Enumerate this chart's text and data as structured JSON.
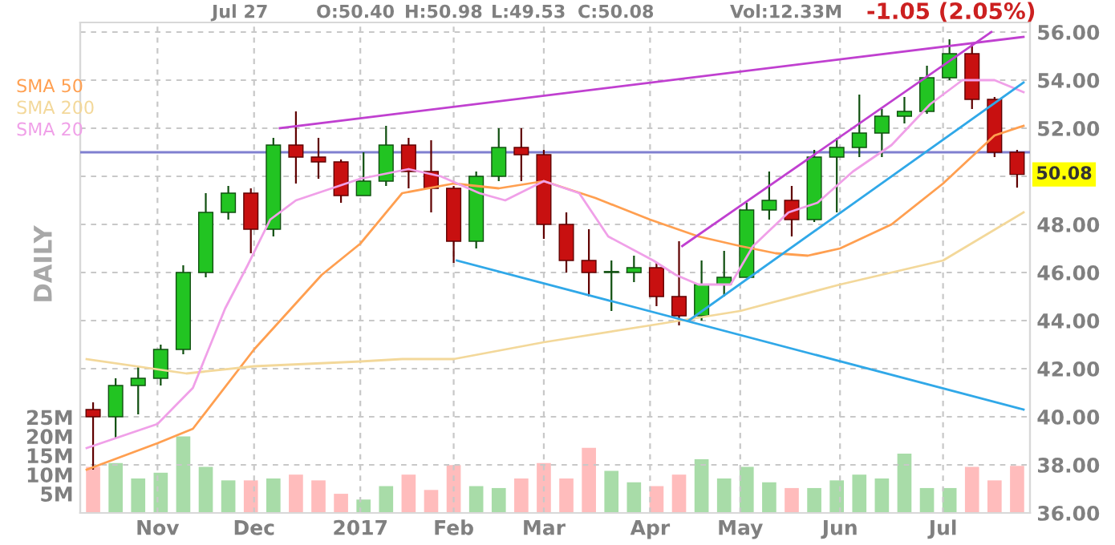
{
  "chart_data": {
    "type": "candlestick",
    "x": [
      "2016-10-12",
      "2016-10-19",
      "2016-10-26",
      "2016-11-02",
      "2016-11-09",
      "2016-11-16",
      "2016-11-23",
      "2016-11-30",
      "2016-12-07",
      "2016-12-14",
      "2016-12-21",
      "2016-12-28",
      "2017-01-04",
      "2017-01-11",
      "2017-01-18",
      "2017-01-25",
      "2017-02-01",
      "2017-02-08",
      "2017-02-15",
      "2017-02-22",
      "2017-03-01",
      "2017-03-08",
      "2017-03-15",
      "2017-03-22",
      "2017-03-29",
      "2017-04-05",
      "2017-04-12",
      "2017-04-19",
      "2017-04-26",
      "2017-05-03",
      "2017-05-10",
      "2017-05-17",
      "2017-05-24",
      "2017-05-31",
      "2017-06-07",
      "2017-06-14",
      "2017-06-21",
      "2017-06-28",
      "2017-07-05",
      "2017-07-12",
      "2017-07-19",
      "2017-07-26"
    ],
    "ohlc": [
      [
        40.3,
        40.6,
        37.8,
        40.0
      ],
      [
        40.0,
        41.6,
        39.1,
        41.3
      ],
      [
        41.3,
        42.1,
        40.1,
        41.6
      ],
      [
        41.6,
        43.0,
        41.3,
        42.8
      ],
      [
        42.8,
        46.3,
        42.6,
        46.0
      ],
      [
        46.0,
        49.3,
        45.8,
        48.5
      ],
      [
        48.5,
        49.6,
        48.2,
        49.3
      ],
      [
        49.3,
        49.5,
        46.8,
        47.8
      ],
      [
        47.8,
        51.6,
        47.5,
        51.3
      ],
      [
        51.3,
        52.7,
        49.7,
        50.8
      ],
      [
        50.8,
        51.6,
        49.9,
        50.6
      ],
      [
        50.6,
        50.7,
        48.9,
        49.2
      ],
      [
        49.2,
        51.0,
        49.2,
        49.8
      ],
      [
        49.8,
        52.1,
        49.6,
        51.3
      ],
      [
        51.3,
        51.6,
        49.5,
        50.2
      ],
      [
        50.2,
        51.5,
        48.5,
        49.5
      ],
      [
        49.5,
        49.6,
        46.4,
        47.3
      ],
      [
        47.3,
        50.2,
        47.0,
        50.0
      ],
      [
        50.0,
        52.0,
        49.8,
        51.2
      ],
      [
        51.2,
        52.0,
        49.8,
        50.9
      ],
      [
        50.9,
        51.1,
        47.4,
        48.0
      ],
      [
        48.0,
        48.5,
        46.0,
        46.5
      ],
      [
        46.5,
        47.8,
        45.0,
        46.0
      ],
      [
        46.0,
        46.5,
        44.4,
        46.0
      ],
      [
        46.0,
        46.7,
        45.6,
        46.2
      ],
      [
        46.2,
        46.4,
        44.6,
        45.0
      ],
      [
        45.0,
        47.3,
        43.8,
        44.2
      ],
      [
        44.2,
        46.5,
        44.0,
        45.5
      ],
      [
        45.5,
        46.9,
        45.0,
        45.8
      ],
      [
        45.8,
        48.9,
        45.8,
        48.6
      ],
      [
        48.6,
        50.2,
        48.2,
        49.0
      ],
      [
        49.0,
        49.6,
        47.5,
        48.2
      ],
      [
        48.2,
        51.1,
        48.1,
        50.8
      ],
      [
        50.8,
        51.6,
        48.5,
        51.2
      ],
      [
        51.2,
        53.4,
        50.8,
        51.8
      ],
      [
        51.8,
        52.8,
        50.8,
        52.5
      ],
      [
        52.5,
        53.3,
        52.2,
        52.7
      ],
      [
        52.7,
        54.6,
        52.6,
        54.1
      ],
      [
        54.1,
        55.7,
        54.0,
        55.1
      ],
      [
        55.1,
        55.5,
        52.8,
        53.2
      ],
      [
        53.2,
        53.3,
        50.8,
        51.0
      ],
      [
        51.0,
        51.1,
        49.53,
        50.08
      ]
    ],
    "series": [
      {
        "type": "bar",
        "axis": "y2",
        "x": [
          "2016-10-12",
          "2016-10-19",
          "2016-10-26",
          "2016-11-02",
          "2016-11-09",
          "2016-11-16",
          "2016-11-23",
          "2016-11-30",
          "2016-12-07",
          "2016-12-14",
          "2016-12-21",
          "2016-12-28",
          "2017-01-04",
          "2017-01-11",
          "2017-01-18",
          "2017-01-25",
          "2017-02-01",
          "2017-02-08",
          "2017-02-15",
          "2017-02-22",
          "2017-03-01",
          "2017-03-08",
          "2017-03-15",
          "2017-03-22",
          "2017-03-29",
          "2017-04-05",
          "2017-04-12",
          "2017-04-19",
          "2017-04-26",
          "2017-05-03",
          "2017-05-10",
          "2017-05-17",
          "2017-05-24",
          "2017-05-31",
          "2017-06-07",
          "2017-06-14",
          "2017-06-21",
          "2017-06-28",
          "2017-07-05",
          "2017-07-12",
          "2017-07-19",
          "2017-07-26"
        ],
        "values": [
          12,
          13,
          9,
          10.5,
          20,
          12,
          8.5,
          8.5,
          9,
          10,
          8.5,
          5,
          3.5,
          7,
          10,
          6,
          12.5,
          7,
          6.5,
          9,
          13,
          9,
          17,
          11,
          8,
          7,
          10,
          14,
          9,
          12,
          8,
          6.5,
          6.5,
          8.5,
          10,
          9,
          15.5,
          6.5,
          6.5,
          12,
          8.5,
          12.3
        ],
        "colors": [
          "#ffbcbc",
          "#a8dca8",
          "#a8dca8",
          "#a8dca8",
          "#a8dca8",
          "#a8dca8",
          "#a8dca8",
          "#ffbcbc",
          "#a8dca8",
          "#ffbcbc",
          "#ffbcbc",
          "#ffbcbc",
          "#a8dca8",
          "#a8dca8",
          "#ffbcbc",
          "#ffbcbc",
          "#ffbcbc",
          "#a8dca8",
          "#a8dca8",
          "#ffbcbc",
          "#ffbcbc",
          "#ffbcbc",
          "#ffbcbc",
          "#a8dca8",
          "#a8dca8",
          "#ffbcbc",
          "#ffbcbc",
          "#a8dca8",
          "#a8dca8",
          "#a8dca8",
          "#a8dca8",
          "#ffbcbc",
          "#a8dca8",
          "#a8dca8",
          "#a8dca8",
          "#a8dca8",
          "#a8dca8",
          "#a8dca8",
          "#a8dca8",
          "#ffbcbc",
          "#ffbcbc",
          "#ffbcbc"
        ]
      },
      {
        "type": "line",
        "name": "SMA 50",
        "color": "#ff9f50",
        "x": [
          "2016-10-10",
          "2016-11-01",
          "2016-11-12",
          "2016-12-01",
          "2016-12-22",
          "2017-01-03",
          "2017-01-16",
          "2017-02-01",
          "2017-02-15",
          "2017-03-01",
          "2017-03-17",
          "2017-04-03",
          "2017-04-18",
          "2017-05-01",
          "2017-05-12",
          "2017-05-22",
          "2017-06-01",
          "2017-06-17",
          "2017-07-03",
          "2017-07-19",
          "2017-07-28"
        ],
        "values": [
          37.8,
          38.9,
          39.5,
          42.8,
          45.9,
          47.2,
          49.3,
          49.7,
          49.5,
          49.8,
          49.1,
          48.2,
          47.5,
          47.1,
          46.8,
          46.7,
          47.0,
          48.0,
          49.7,
          51.7,
          52.1
        ]
      },
      {
        "type": "line",
        "name": "SMA 200",
        "color": "#f3d89a",
        "x": [
          "2016-10-10",
          "2016-11-10",
          "2016-12-01",
          "2017-01-03",
          "2017-01-16",
          "2017-02-01",
          "2017-03-01",
          "2017-04-03",
          "2017-05-01",
          "2017-06-01",
          "2017-07-03",
          "2017-07-28"
        ],
        "values": [
          42.4,
          41.8,
          42.1,
          42.3,
          42.4,
          42.4,
          43.1,
          43.8,
          44.4,
          45.5,
          46.5,
          48.5
        ]
      },
      {
        "type": "line",
        "name": "SMA 20",
        "color": "#f0a0e8",
        "x": [
          "2016-10-10",
          "2016-11-01",
          "2016-11-12",
          "2016-11-22",
          "2016-11-29",
          "2016-12-06",
          "2016-12-14",
          "2017-01-03",
          "2017-01-18",
          "2017-01-28",
          "2017-02-09",
          "2017-02-17",
          "2017-03-01",
          "2017-03-12",
          "2017-03-21",
          "2017-04-04",
          "2017-04-11",
          "2017-04-18",
          "2017-04-28",
          "2017-05-05",
          "2017-05-16",
          "2017-05-25",
          "2017-06-05",
          "2017-06-17",
          "2017-06-29",
          "2017-07-09",
          "2017-07-19",
          "2017-07-28"
        ],
        "values": [
          38.7,
          39.7,
          41.2,
          44.5,
          46.3,
          48.2,
          49.0,
          49.9,
          50.3,
          50.0,
          49.3,
          49.0,
          49.8,
          49.3,
          47.5,
          46.5,
          45.9,
          45.5,
          45.5,
          47.1,
          48.5,
          48.9,
          50.2,
          51.3,
          53.0,
          54.0,
          54.0,
          53.5
        ]
      },
      {
        "type": "line",
        "color": "#c040d0",
        "x": [
          "2016-12-09",
          "2017-07-28"
        ],
        "values": [
          52.0,
          55.8
        ]
      },
      {
        "type": "line",
        "color": "#c040d0",
        "x": [
          "2017-04-13",
          "2017-07-18"
        ],
        "values": [
          47.1,
          56.0
        ]
      },
      {
        "type": "line",
        "color": "#30a8e8",
        "x": [
          "2017-02-02",
          "2017-07-28"
        ],
        "values": [
          46.5,
          40.3
        ]
      },
      {
        "type": "line",
        "color": "#30a8e8",
        "x": [
          "2017-04-15",
          "2017-07-28"
        ],
        "values": [
          44.0,
          53.9
        ]
      }
    ],
    "xlim": [
      "2016-10-08",
      "2017-07-30"
    ],
    "xticks": [
      {
        "value": "2016-11-01",
        "label": "Nov"
      },
      {
        "value": "2016-12-01",
        "label": "Dec"
      },
      {
        "value": "2017-01-03",
        "label": "2017"
      },
      {
        "value": "2017-02-01",
        "label": "Feb"
      },
      {
        "value": "2017-03-01",
        "label": "Mar"
      },
      {
        "value": "2017-04-03",
        "label": "Apr"
      },
      {
        "value": "2017-05-01",
        "label": "May"
      },
      {
        "value": "2017-06-01",
        "label": "Jun"
      },
      {
        "value": "2017-07-03",
        "label": "Jul"
      }
    ],
    "ylim": [
      36,
      56.4
    ],
    "yticks": [
      {
        "value": 36,
        "label": "36.00"
      },
      {
        "value": 38,
        "label": "38.00"
      },
      {
        "value": 40,
        "label": "40.00"
      },
      {
        "value": 42,
        "label": "42.00"
      },
      {
        "value": 44,
        "label": "44.00"
      },
      {
        "value": 46,
        "label": "46.00"
      },
      {
        "value": 48,
        "label": "48.00"
      },
      {
        "value": 50,
        "label": null
      },
      {
        "value": 52,
        "label": "52.00"
      },
      {
        "value": 54,
        "label": "54.00"
      },
      {
        "value": 56,
        "label": "56.00"
      }
    ],
    "y2lim": [
      0,
      128
    ],
    "y2ticks": [
      {
        "value": 5,
        "label": "5M"
      },
      {
        "value": 10,
        "label": "10M"
      },
      {
        "value": 15,
        "label": "15M"
      },
      {
        "value": 20,
        "label": "20M"
      },
      {
        "value": 25,
        "label": "25M"
      }
    ],
    "ref_lines": [
      {
        "axis": "y",
        "value": 51.0,
        "color": "#8080d0"
      }
    ],
    "grid": true,
    "legend": "top left",
    "annotations": [
      "Jul 27",
      "O:50.40",
      "H:50.98",
      "L:49.53",
      "C:50.08",
      "Vol:12.33M",
      "-1.05 (2.05%)",
      "DAILY",
      {
        "text": "50.08",
        "x": "2017-07-27",
        "y": 50.08
      }
    ]
  }
}
